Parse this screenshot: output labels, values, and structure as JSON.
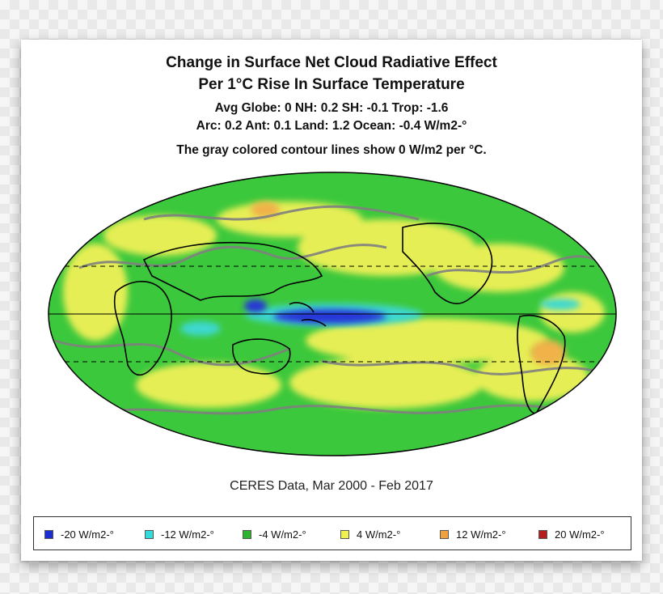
{
  "title": {
    "line1": "Change in Surface Net Cloud Radiative Effect",
    "line2": "Per 1°C Rise In Surface Temperature"
  },
  "stats": {
    "line1": "Avg Globe: 0  NH: 0.2  SH: -0.1  Trop: -1.6",
    "line2": "Arc: 0.2  Ant: 0.1  Land: 1.2 Ocean: -0.4 W/m2-°"
  },
  "note": "The gray colored contour lines show 0 W/m2 per °C.",
  "source": "CERES Data, Mar 2000 - Feb 2017",
  "map": {
    "projection": "mollweide",
    "background_color": "#3cc83c",
    "contour_color": "#808080",
    "coastline_color": "#000000"
  },
  "legend": [
    {
      "label": "-20 W/m2-°",
      "color": "#1e2dd2"
    },
    {
      "label": "-12 W/m2-°",
      "color": "#32dcdc"
    },
    {
      "label": "-4 W/m2-°",
      "color": "#2db42d"
    },
    {
      "label": "4 W/m2-°",
      "color": "#f0f050"
    },
    {
      "label": "12 W/m2-°",
      "color": "#f0a03c"
    },
    {
      "label": "20 W/m2-°",
      "color": "#b41e1e"
    }
  ]
}
